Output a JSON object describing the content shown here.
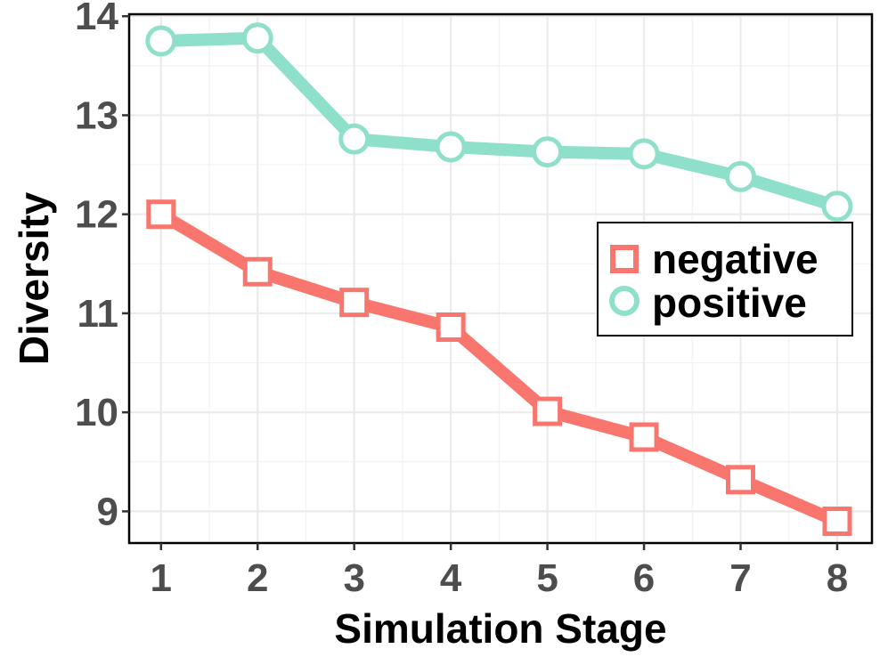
{
  "chart_data": {
    "type": "line",
    "title": "",
    "xlabel": "Simulation Stage",
    "ylabel": "Diversity",
    "x": [
      1,
      2,
      3,
      4,
      5,
      6,
      7,
      8
    ],
    "x_tick_labels": [
      "1",
      "2",
      "3",
      "4",
      "5",
      "6",
      "7",
      "8"
    ],
    "y_ticks": [
      9,
      10,
      11,
      12,
      13,
      14
    ],
    "y_tick_labels": [
      "9",
      "10",
      "11",
      "12",
      "13",
      "14"
    ],
    "xlim": [
      0.67,
      8.36
    ],
    "ylim": [
      8.68,
      14.02
    ],
    "grid": true,
    "legend_position": "right",
    "series": [
      {
        "name": "negative",
        "marker": "square",
        "color": "#F8766D",
        "values": [
          12.0,
          11.42,
          11.11,
          10.86,
          10.01,
          9.75,
          9.32,
          8.9
        ]
      },
      {
        "name": "positive",
        "marker": "circle",
        "color": "#8FE0CA",
        "values": [
          13.75,
          13.78,
          12.76,
          12.68,
          12.63,
          12.61,
          12.38,
          12.08
        ]
      }
    ]
  }
}
